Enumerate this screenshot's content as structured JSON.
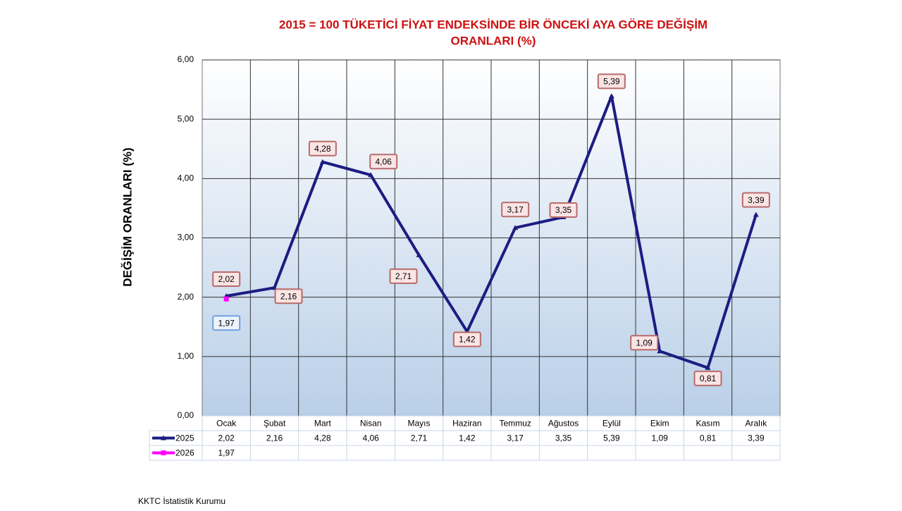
{
  "chart_data": {
    "type": "line",
    "title": [
      "2015 = 100 TÜKETİCİ FİYAT ENDEKSİNDE BİR ÖNCEKİ AYA GÖRE DEĞİŞİM",
      "ORANLARI (%)"
    ],
    "y_label": "DEĞİŞİM ORANLARI (%)",
    "source": "KKTC İstatistik Kurumu",
    "categories": [
      "Ocak",
      "Şubat",
      "Mart",
      "Nisan",
      "Mayıs",
      "Haziran",
      "Temmuz",
      "Ağustos",
      "Eylül",
      "Ekim",
      "Kasım",
      "Aralık"
    ],
    "series": [
      {
        "name": "2025",
        "color": "#1c1c82",
        "marker": "triangle",
        "values": [
          2.02,
          2.16,
          4.28,
          4.06,
          2.71,
          1.42,
          3.17,
          3.35,
          5.39,
          1.09,
          0.81,
          3.39
        ],
        "value_labels": [
          "2,02",
          "2,16",
          "4,28",
          "4,06",
          "2,71",
          "1,42",
          "3,17",
          "3,35",
          "5,39",
          "1,09",
          "0,81",
          "3,39"
        ]
      },
      {
        "name": "2026",
        "color": "#ff00ff",
        "marker": "square",
        "values": [
          1.97,
          null,
          null,
          null,
          null,
          null,
          null,
          null,
          null,
          null,
          null,
          null
        ],
        "value_labels": [
          "1,97",
          null,
          null,
          null,
          null,
          null,
          null,
          null,
          null,
          null,
          null,
          null
        ]
      }
    ],
    "ylim": [
      0,
      6
    ],
    "yticks": [
      {
        "value": 0,
        "label": "0,00"
      },
      {
        "value": 1,
        "label": "1,00"
      },
      {
        "value": 2,
        "label": "2,00"
      },
      {
        "value": 3,
        "label": "3,00"
      },
      {
        "value": 4,
        "label": "4,00"
      },
      {
        "value": 5,
        "label": "5,00"
      },
      {
        "value": 6,
        "label": "6,00"
      }
    ],
    "grid": true,
    "data_table": true
  }
}
